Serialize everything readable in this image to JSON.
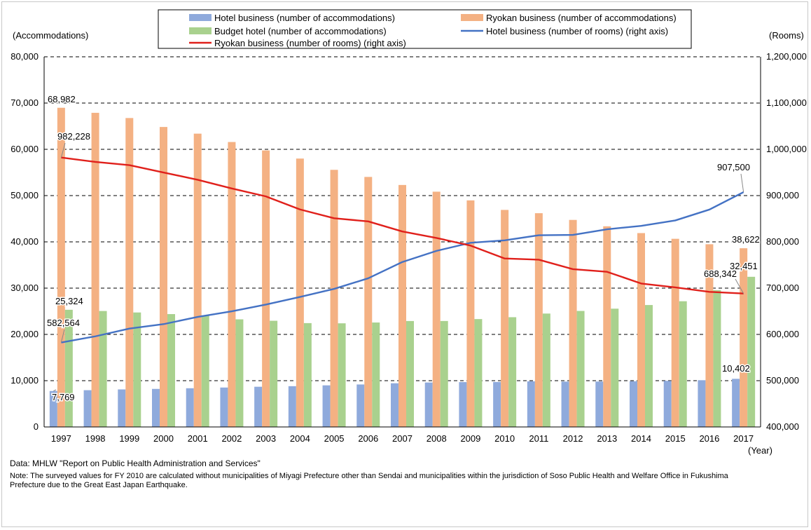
{
  "chart_data": {
    "type": "bar",
    "categories": [
      "1997",
      "1998",
      "1999",
      "2000",
      "2001",
      "2002",
      "2003",
      "2004",
      "2005",
      "2006",
      "2007",
      "2008",
      "2009",
      "2010",
      "2011",
      "2012",
      "2013",
      "2014",
      "2015",
      "2016",
      "2017"
    ],
    "xlabel": "(Year)",
    "ylabel": "(Accommodations)",
    "ylim": [
      0,
      80000
    ],
    "y_ticks": [
      "0",
      "10,000",
      "20,000",
      "30,000",
      "40,000",
      "50,000",
      "60,000",
      "70,000",
      "80,000"
    ],
    "y2label": "(Rooms)",
    "y2lim": [
      400000,
      1200000
    ],
    "y2_ticks": [
      "400,000",
      "500,000",
      "600,000",
      "700,000",
      "800,000",
      "900,000",
      "1,000,000",
      "1,100,000",
      "1,200,000"
    ],
    "grid": "dashed horizontal",
    "legend_position": "top",
    "bar_series": [
      {
        "name": "Hotel business (number of accommodations)",
        "color": "#8faadc",
        "values": [
          7769,
          7944,
          8110,
          8220,
          8363,
          8518,
          8686,
          8811,
          8990,
          9180,
          9442,
          9603,
          9688,
          9710,
          9863,
          9796,
          9809,
          9879,
          9967,
          10101,
          10402
        ]
      },
      {
        "name": "Ryokan business (number of accommodations)",
        "color": "#f4b183",
        "values": [
          68982,
          67891,
          66766,
          64831,
          63388,
          61583,
          59754,
          58003,
          55567,
          54035,
          52295,
          50846,
          48966,
          46906,
          46196,
          44744,
          43363,
          41899,
          40661,
          39489,
          38622
        ]
      },
      {
        "name": "Budget hotel (number of accommodations)",
        "color": "#a9d18e",
        "values": [
          25324,
          25058,
          24740,
          24391,
          24118,
          23256,
          22946,
          22441,
          22397,
          22571,
          22894,
          22901,
          23314,
          23719,
          24506,
          25071,
          25560,
          26349,
          27169,
          29559,
          32451
        ]
      }
    ],
    "line_series": [
      {
        "name": "Hotel business (number of rooms) (right axis)",
        "color": "#4472c4",
        "axis": "right",
        "values": [
          582564,
          595839,
          612581,
          622175,
          637850,
          649891,
          664460,
          681025,
          698378,
          721329,
          756505,
          780505,
          798070,
          803248,
          814355,
          814984,
          827211,
          834588,
          846332,
          869810,
          907500
        ]
      },
      {
        "name": "Ryokan business (number of rooms) (right axis)",
        "color": "#e0201b",
        "axis": "right",
        "values": [
          982228,
          972761,
          965863,
          949956,
          934227,
          915405,
          898270,
          870063,
          851074,
          844258,
          822438,
          808476,
          791893,
          764036,
          761448,
          740977,
          735271,
          710019,
          701656,
          691962,
          688342
        ]
      }
    ],
    "data_labels": [
      {
        "text": "68,982"
      },
      {
        "text": "982,228"
      },
      {
        "text": "25,324"
      },
      {
        "text": "582,564"
      },
      {
        "text": "7,769"
      },
      {
        "text": "907,500"
      },
      {
        "text": "38,622"
      },
      {
        "text": "688,342"
      },
      {
        "text": "32,451"
      },
      {
        "text": "10,402"
      }
    ]
  },
  "source": "Data: MHLW \"Report on Public Health Administration and Services\"",
  "note": "Note: The surveyed values for FY 2010 are calculated without municipalities of Miyagi Prefecture other than Sendai and municipalities within the jurisdiction of Soso Public Health and Welfare Office in Fukushima Prefecture due to the Great East Japan Earthquake."
}
